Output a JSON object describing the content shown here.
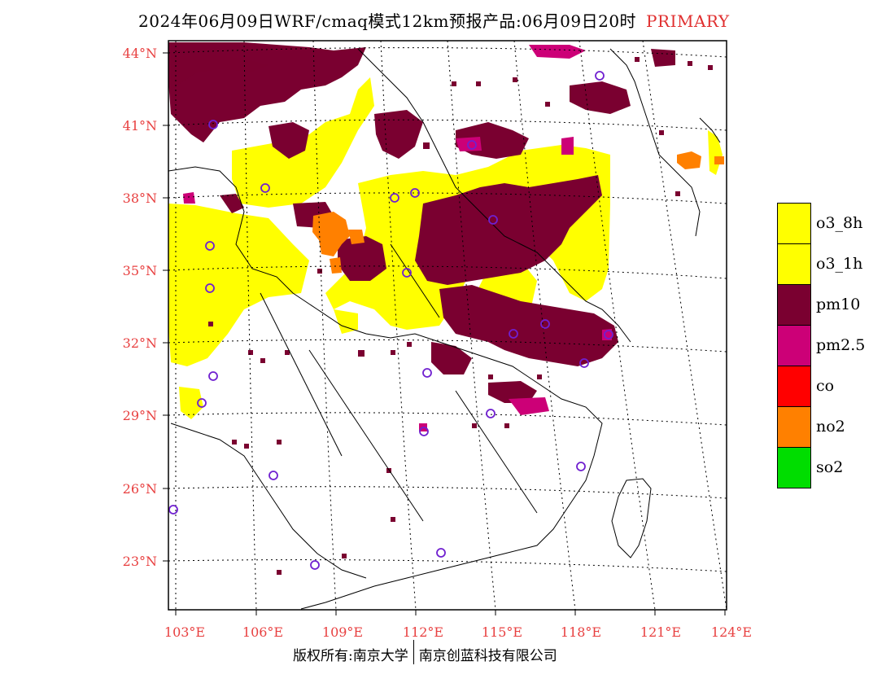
{
  "title": {
    "main": "2024年06月09日WRF/cmaq模式12km预报产品:06月09日20时",
    "tag": "PRIMARY"
  },
  "axes": {
    "lat_labels": [
      "44°N",
      "41°N",
      "38°N",
      "35°N",
      "32°N",
      "29°N",
      "26°N",
      "23°N"
    ],
    "lon_labels": [
      "103°E",
      "106°E",
      "109°E",
      "112°E",
      "115°E",
      "118°E",
      "121°E",
      "124°E"
    ]
  },
  "legend": [
    {
      "label": "o3_8h",
      "color": "#ffff00"
    },
    {
      "label": "o3_1h",
      "color": "#ffff00"
    },
    {
      "label": "pm10",
      "color": "#7a0030"
    },
    {
      "label": "pm2.5",
      "color": "#cc0077"
    },
    {
      "label": "co",
      "color": "#ff0000"
    },
    {
      "label": "no2",
      "color": "#ff8000"
    },
    {
      "label": "so2",
      "color": "#00dd00"
    }
  ],
  "footer": {
    "left": "版权所有:南京大学",
    "right": "南京创蓝科技有限公司"
  }
}
